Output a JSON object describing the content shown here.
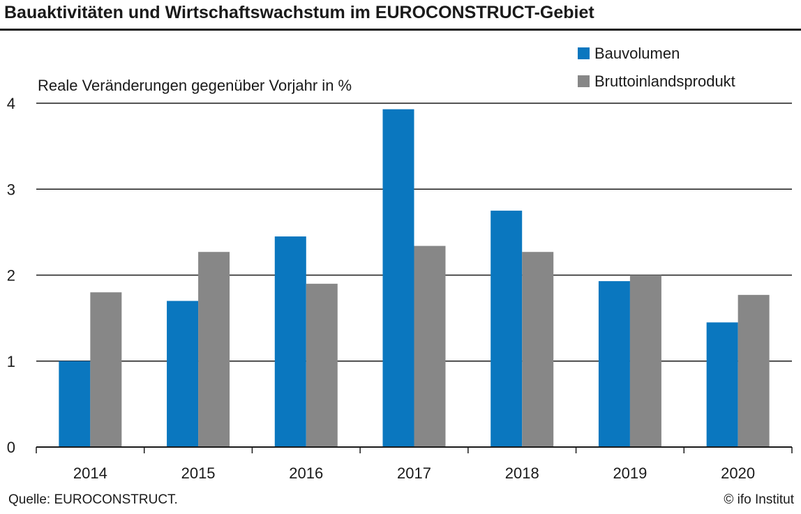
{
  "header": {
    "title": "Bauaktivitäten und Wirtschaftswachstum im EUROCONSTRUCT-Gebiet"
  },
  "footer": {
    "source": "Quelle: EUROCONSTRUCT.",
    "copyright": "© ifo Institut"
  },
  "chart_data": {
    "type": "bar",
    "title": "Bauaktivitäten und Wirtschaftswachstum im EUROCONSTRUCT-Gebiet",
    "subtitle": "Reale Veränderungen gegenüber Vorjahr in %",
    "xlabel": "",
    "ylabel": "",
    "categories": [
      "2014",
      "2015",
      "2016",
      "2017",
      "2018",
      "2019",
      "2020"
    ],
    "series": [
      {
        "name": "Bauvolumen",
        "color": "#0a77bf",
        "values": [
          1.0,
          1.7,
          2.45,
          3.93,
          2.75,
          1.93,
          1.45
        ]
      },
      {
        "name": "Bruttoinlandsprodukt",
        "color": "#878787",
        "values": [
          1.8,
          2.27,
          1.9,
          2.34,
          2.27,
          2.0,
          1.77
        ]
      }
    ],
    "ylim": [
      0,
      4
    ],
    "yticks": [
      "0",
      "1",
      "2",
      "3",
      "4"
    ],
    "grid": true,
    "legend_position": "top-right"
  }
}
